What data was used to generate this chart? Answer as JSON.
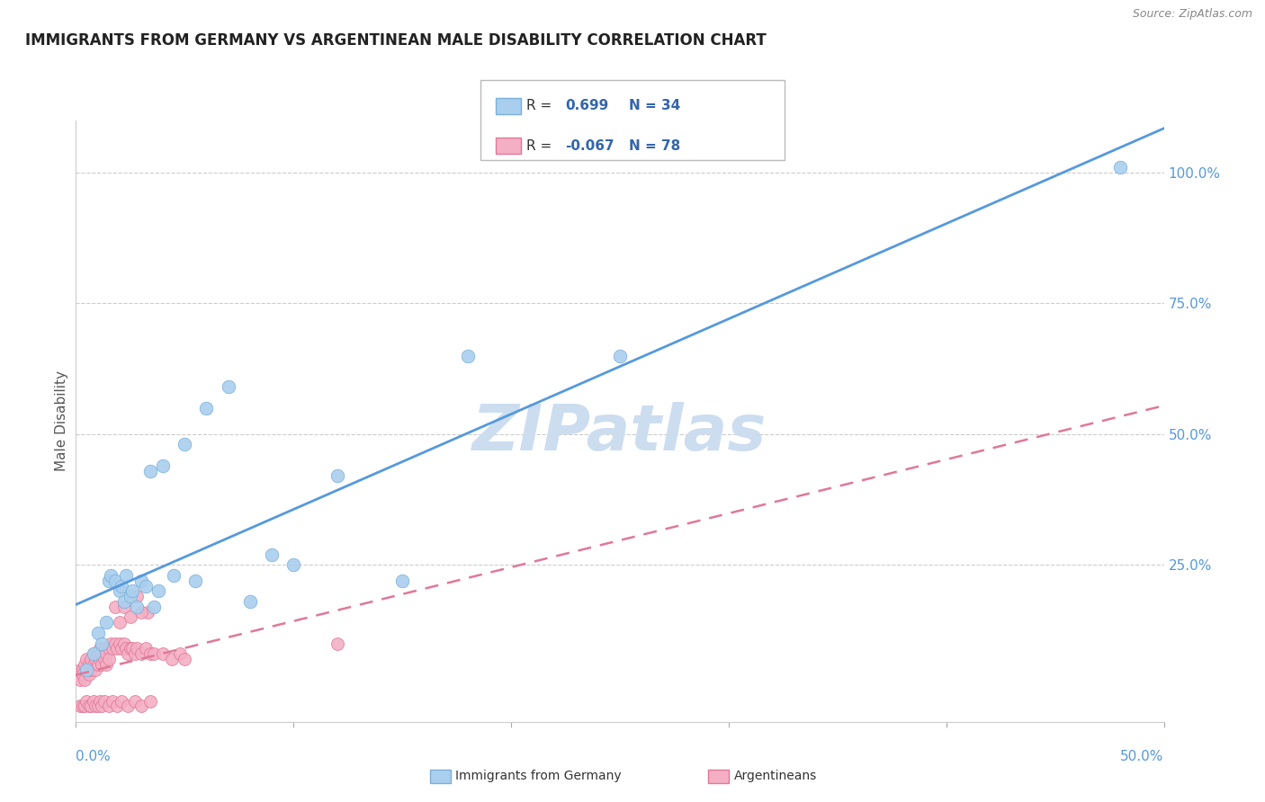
{
  "title": "IMMIGRANTS FROM GERMANY VS ARGENTINEAN MALE DISABILITY CORRELATION CHART",
  "source": "Source: ZipAtlas.com",
  "ylabel": "Male Disability",
  "y_ticks": [
    "25.0%",
    "50.0%",
    "75.0%",
    "100.0%"
  ],
  "y_tick_vals": [
    0.25,
    0.5,
    0.75,
    1.0
  ],
  "xlim": [
    0.0,
    0.5
  ],
  "ylim": [
    -0.05,
    1.1
  ],
  "blue_R": 0.699,
  "blue_N": 34,
  "pink_R": -0.067,
  "pink_N": 78,
  "blue_color": "#aacfee",
  "blue_edge": "#7ab0d9",
  "pink_color": "#f4afc5",
  "pink_edge": "#e07898",
  "trend_blue": "#5599dd",
  "trend_pink": "#e07898",
  "watermark_color": "#ccddf0",
  "legend_R_color": "#3366aa",
  "blue_scatter_x": [
    0.005,
    0.008,
    0.01,
    0.012,
    0.014,
    0.015,
    0.016,
    0.018,
    0.02,
    0.021,
    0.022,
    0.023,
    0.025,
    0.026,
    0.028,
    0.03,
    0.032,
    0.034,
    0.036,
    0.038,
    0.04,
    0.045,
    0.05,
    0.055,
    0.06,
    0.07,
    0.08,
    0.09,
    0.1,
    0.12,
    0.15,
    0.18,
    0.25,
    0.48
  ],
  "blue_scatter_y": [
    0.05,
    0.08,
    0.12,
    0.1,
    0.14,
    0.22,
    0.23,
    0.22,
    0.2,
    0.21,
    0.18,
    0.23,
    0.19,
    0.2,
    0.17,
    0.22,
    0.21,
    0.43,
    0.17,
    0.2,
    0.44,
    0.23,
    0.48,
    0.22,
    0.55,
    0.59,
    0.18,
    0.27,
    0.25,
    0.42,
    0.22,
    0.65,
    0.65,
    1.01
  ],
  "pink_scatter_x": [
    0.001,
    0.002,
    0.002,
    0.003,
    0.003,
    0.004,
    0.004,
    0.005,
    0.005,
    0.006,
    0.006,
    0.007,
    0.007,
    0.008,
    0.008,
    0.009,
    0.009,
    0.01,
    0.01,
    0.011,
    0.011,
    0.012,
    0.012,
    0.013,
    0.013,
    0.014,
    0.014,
    0.015,
    0.015,
    0.016,
    0.017,
    0.018,
    0.019,
    0.02,
    0.021,
    0.022,
    0.023,
    0.024,
    0.025,
    0.026,
    0.027,
    0.028,
    0.03,
    0.032,
    0.034,
    0.036,
    0.04,
    0.044,
    0.048,
    0.05,
    0.002,
    0.003,
    0.004,
    0.005,
    0.006,
    0.007,
    0.008,
    0.009,
    0.01,
    0.011,
    0.012,
    0.013,
    0.015,
    0.017,
    0.019,
    0.021,
    0.024,
    0.027,
    0.03,
    0.034,
    0.018,
    0.022,
    0.028,
    0.033,
    0.02,
    0.025,
    0.03,
    0.12
  ],
  "pink_scatter_y": [
    0.04,
    0.05,
    0.03,
    0.05,
    0.04,
    0.06,
    0.03,
    0.07,
    0.05,
    0.06,
    0.04,
    0.07,
    0.05,
    0.08,
    0.06,
    0.07,
    0.05,
    0.08,
    0.06,
    0.09,
    0.07,
    0.08,
    0.06,
    0.09,
    0.07,
    0.08,
    0.06,
    0.09,
    0.07,
    0.1,
    0.09,
    0.1,
    0.09,
    0.1,
    0.09,
    0.1,
    0.09,
    0.08,
    0.09,
    0.09,
    0.08,
    0.09,
    0.08,
    0.09,
    0.08,
    0.08,
    0.08,
    0.07,
    0.08,
    0.07,
    -0.02,
    -0.02,
    -0.02,
    -0.01,
    -0.02,
    -0.02,
    -0.01,
    -0.02,
    -0.02,
    -0.01,
    -0.02,
    -0.01,
    -0.02,
    -0.01,
    -0.02,
    -0.01,
    -0.02,
    -0.01,
    -0.02,
    -0.01,
    0.17,
    0.17,
    0.19,
    0.16,
    0.14,
    0.15,
    0.16,
    0.1
  ]
}
